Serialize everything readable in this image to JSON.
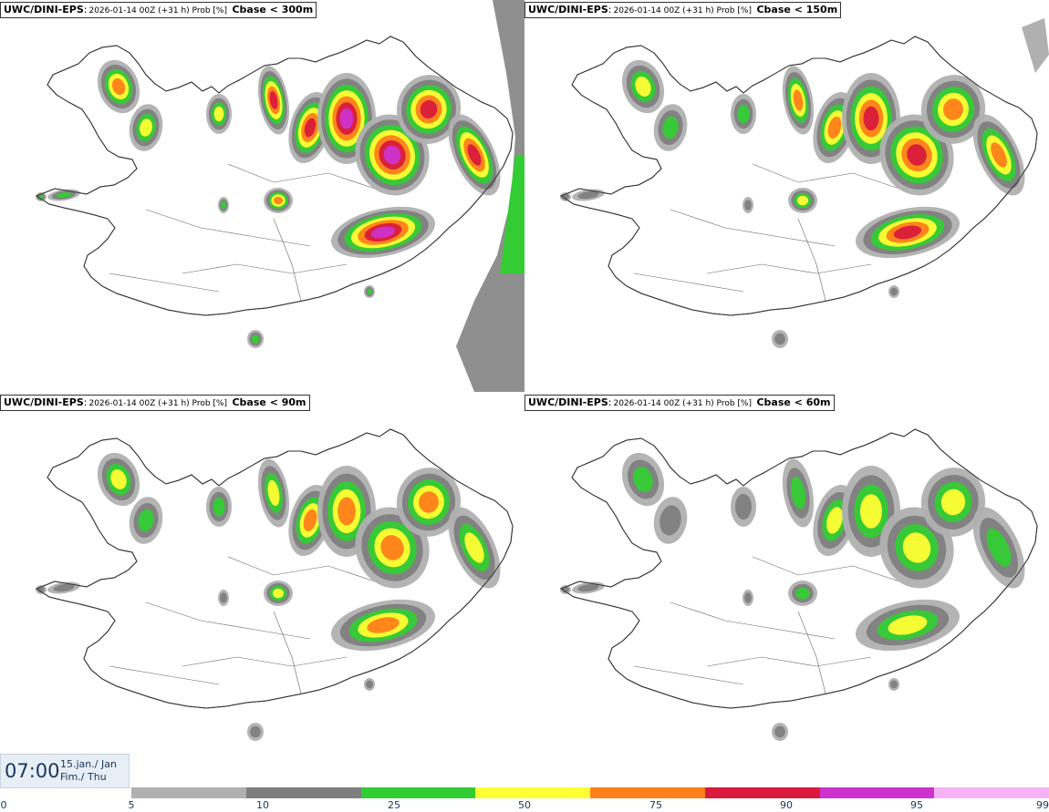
{
  "panels": [
    {
      "model": "UWC/DINI-EPS",
      "run": "2026-01-14 00Z (+31 h) Prob [%]",
      "field": "Cbase < 300m",
      "level": 4
    },
    {
      "model": "UWC/DINI-EPS",
      "run": "2026-01-14 00Z (+31 h) Prob [%]",
      "field": "Cbase < 150m",
      "level": 3
    },
    {
      "model": "UWC/DINI-EPS",
      "run": "2026-01-14 00Z (+31 h) Prob [%]",
      "field": "Cbase < 90m",
      "level": 2
    },
    {
      "model": "UWC/DINI-EPS",
      "run": "2026-01-14 00Z (+31 h) Prob [%]",
      "field": "Cbase < 60m",
      "level": 1
    }
  ],
  "valid_time": {
    "time": "07:00",
    "date": "15.jan./ Jan",
    "weekday": "Fim./ Thu"
  },
  "legend": {
    "ticks": [
      "0",
      "5",
      "10",
      "25",
      "50",
      "75",
      "90",
      "95",
      "99"
    ],
    "colors": [
      "#b0b0b0",
      "#7f7f7f",
      "#33cc33",
      "#ffff33",
      "#ff7f1a",
      "#d91a3c",
      "#cc33cc",
      "#f5b3f5"
    ]
  }
}
